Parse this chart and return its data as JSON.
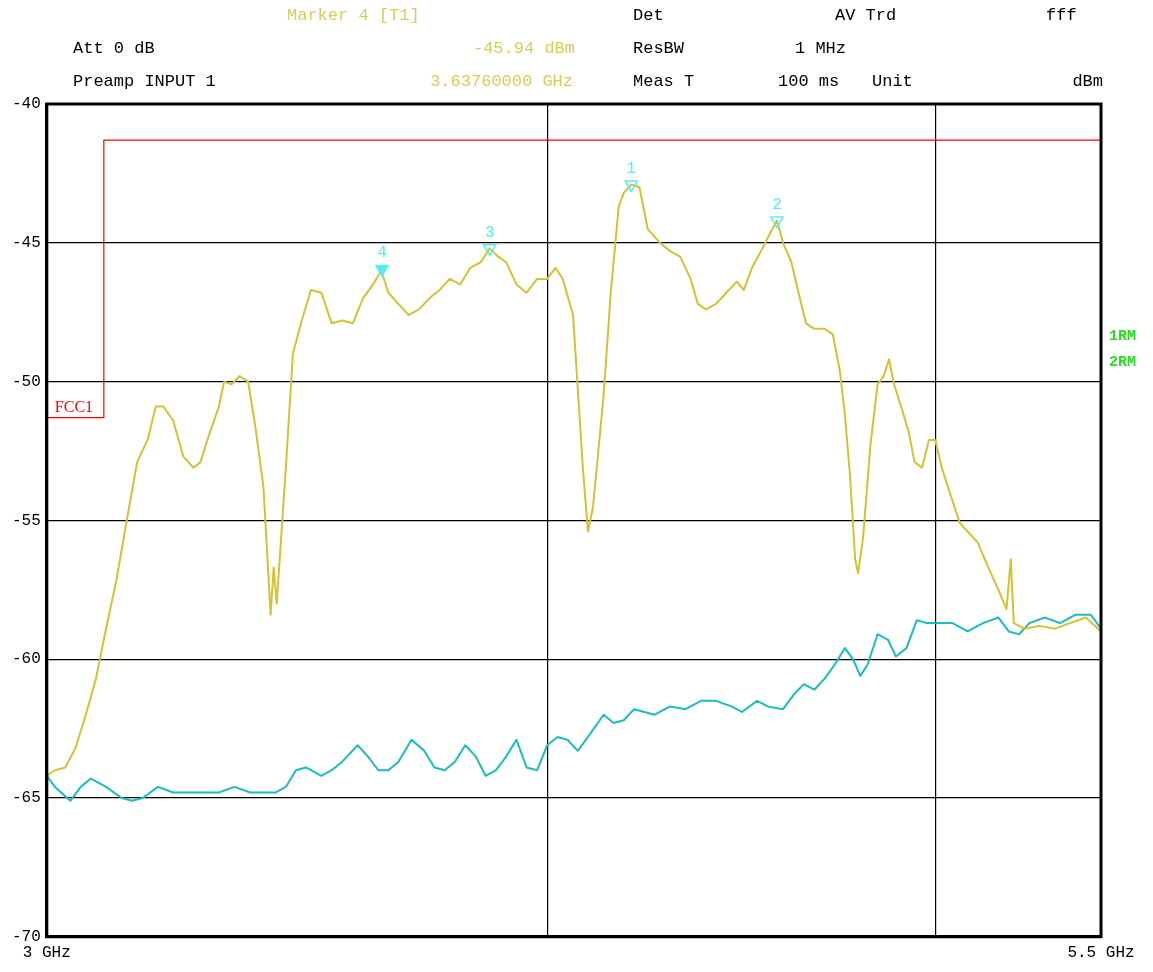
{
  "chart_data": {
    "type": "line",
    "xlim": [
      3,
      5.5
    ],
    "ylim": [
      -70,
      -40
    ],
    "log": "x",
    "grid": true,
    "legend": false,
    "marker": "none",
    "line_style": "solid",
    "xticks": [
      {
        "value": 3,
        "label": "3 GHz"
      },
      {
        "value": 4,
        "label": null
      },
      {
        "value": 5,
        "label": null
      },
      {
        "value": 5.5,
        "label": "5.5 GHz"
      }
    ],
    "yticks": [
      -40,
      -45,
      -50,
      -55,
      -60,
      -65,
      -70
    ],
    "annotations": [
      "Marker 4 [T1]",
      "Det",
      "AV Trd",
      "fff",
      "Att 0 dB",
      "-45.94 dBm",
      "ResBW",
      "1 MHz",
      "Preamp INPUT 1",
      "3.63760000 GHz",
      "Meas T",
      "100 ms",
      "Unit",
      "dBm",
      "1RM",
      "2RM"
    ],
    "series": [
      {
        "type": "scatter",
        "marker": "triangle",
        "name": "1",
        "color": "#55eeee",
        "x": [
          4.198
        ],
        "values": [
          -42.9
        ]
      },
      {
        "type": "scatter",
        "marker": "triangle",
        "name": "2",
        "color": "#55eeee",
        "x": [
          4.565
        ],
        "values": [
          -44.2
        ]
      },
      {
        "type": "scatter",
        "marker": "triangle",
        "name": "3",
        "color": "#55eeee",
        "x": [
          3.87
        ],
        "values": [
          -45.2
        ]
      },
      {
        "type": "scatter",
        "marker": "triangle",
        "name": "4",
        "color": "#55eeee",
        "x": [
          3.6376
        ],
        "values": [
          -45.94
        ]
      },
      {
        "color": "#d4c232",
        "x": [
          3.0,
          3.014,
          3.032,
          3.05,
          3.068,
          3.086,
          3.104,
          3.123,
          3.142,
          3.16,
          3.179,
          3.194,
          3.208,
          3.226,
          3.245,
          3.264,
          3.277,
          3.292,
          3.312,
          3.322,
          3.336,
          3.352,
          3.368,
          3.382,
          3.398,
          3.412,
          3.418,
          3.424,
          3.442,
          3.456,
          3.472,
          3.492,
          3.513,
          3.534,
          3.555,
          3.577,
          3.598,
          3.619,
          3.636,
          3.651,
          3.672,
          3.694,
          3.716,
          3.738,
          3.76,
          3.782,
          3.805,
          3.827,
          3.85,
          3.87,
          3.889,
          3.907,
          3.93,
          3.953,
          3.977,
          4.0,
          4.019,
          4.036,
          4.06,
          4.083,
          4.095,
          4.107,
          4.132,
          4.149,
          4.168,
          4.18,
          4.198,
          4.218,
          4.238,
          4.268,
          4.293,
          4.318,
          4.344,
          4.362,
          4.382,
          4.408,
          4.434,
          4.461,
          4.479,
          4.5,
          4.527,
          4.549,
          4.565,
          4.581,
          4.603,
          4.622,
          4.642,
          4.664,
          4.692,
          4.714,
          4.733,
          4.747,
          4.761,
          4.775,
          4.783,
          4.797,
          4.817,
          4.837,
          4.854,
          4.869,
          4.883,
          4.903,
          4.924,
          4.941,
          4.962,
          4.982,
          5.0,
          5.021,
          5.05,
          5.071,
          5.094,
          5.124,
          5.155,
          5.185,
          5.209,
          5.222,
          5.231,
          5.263,
          5.309,
          5.356,
          5.403,
          5.452,
          5.5
        ],
        "values": [
          -64.2,
          -64.0,
          -63.9,
          -63.2,
          -62.0,
          -60.7,
          -58.9,
          -57.1,
          -54.9,
          -52.9,
          -52.1,
          -50.9,
          -50.9,
          -51.4,
          -52.7,
          -53.1,
          -52.9,
          -52.0,
          -50.9,
          -50.0,
          -50.1,
          -49.8,
          -50.0,
          -51.6,
          -53.8,
          -58.4,
          -56.7,
          -58.0,
          -53.1,
          -49.0,
          -47.9,
          -46.7,
          -46.8,
          -47.9,
          -47.8,
          -47.9,
          -47.0,
          -46.5,
          -46.0,
          -46.8,
          -47.2,
          -47.6,
          -47.4,
          -47.0,
          -46.7,
          -46.3,
          -46.5,
          -45.9,
          -45.7,
          -45.2,
          -45.5,
          -45.7,
          -46.5,
          -46.8,
          -46.3,
          -46.3,
          -45.9,
          -46.3,
          -47.6,
          -53.1,
          -55.4,
          -54.5,
          -50.5,
          -46.8,
          -43.7,
          -43.2,
          -42.9,
          -43.0,
          -44.5,
          -45.0,
          -45.3,
          -45.5,
          -46.3,
          -47.2,
          -47.4,
          -47.2,
          -46.8,
          -46.4,
          -46.7,
          -45.9,
          -45.2,
          -44.6,
          -44.2,
          -45.0,
          -45.7,
          -46.8,
          -47.9,
          -48.1,
          -48.1,
          -48.3,
          -49.6,
          -51.2,
          -53.4,
          -56.4,
          -56.9,
          -55.6,
          -52.3,
          -50.1,
          -49.8,
          -49.2,
          -50.1,
          -50.9,
          -51.8,
          -52.9,
          -53.1,
          -52.1,
          -52.1,
          -53.2,
          -54.3,
          -55.1,
          -55.4,
          -55.8,
          -56.7,
          -57.5,
          -58.2,
          -56.4,
          -58.7,
          -58.9,
          -58.8,
          -58.9,
          -58.7,
          -58.5,
          -59.0
        ]
      },
      {
        "color": "#1bbdbd",
        "x": [
          3.0,
          3.014,
          3.041,
          3.059,
          3.077,
          3.104,
          3.132,
          3.151,
          3.17,
          3.198,
          3.226,
          3.255,
          3.283,
          3.312,
          3.342,
          3.372,
          3.402,
          3.422,
          3.442,
          3.462,
          3.482,
          3.513,
          3.534,
          3.555,
          3.587,
          3.608,
          3.63,
          3.651,
          3.672,
          3.7,
          3.727,
          3.749,
          3.771,
          3.793,
          3.816,
          3.839,
          3.861,
          3.884,
          3.907,
          3.93,
          3.953,
          3.977,
          4.0,
          4.024,
          4.047,
          4.071,
          4.095,
          4.132,
          4.156,
          4.18,
          4.205,
          4.23,
          4.255,
          4.293,
          4.331,
          4.37,
          4.408,
          4.447,
          4.474,
          4.513,
          4.541,
          4.581,
          4.608,
          4.636,
          4.664,
          4.692,
          4.719,
          4.747,
          4.769,
          4.789,
          4.809,
          4.837,
          4.866,
          4.888,
          4.918,
          4.947,
          4.976,
          5.006,
          5.05,
          5.094,
          5.139,
          5.185,
          5.216,
          5.247,
          5.278,
          5.325,
          5.372,
          5.419,
          5.468,
          5.5
        ],
        "values": [
          -64.2,
          -64.6,
          -65.1,
          -64.6,
          -64.3,
          -64.6,
          -65.0,
          -65.1,
          -65.0,
          -64.6,
          -64.8,
          -64.8,
          -64.8,
          -64.8,
          -64.6,
          -64.8,
          -64.8,
          -64.8,
          -64.6,
          -64.0,
          -63.9,
          -64.2,
          -64.0,
          -63.7,
          -63.1,
          -63.5,
          -64.0,
          -64.0,
          -63.7,
          -62.9,
          -63.3,
          -63.9,
          -64.0,
          -63.7,
          -63.1,
          -63.5,
          -64.2,
          -64.0,
          -63.5,
          -62.9,
          -63.9,
          -64.0,
          -63.1,
          -62.8,
          -62.9,
          -63.3,
          -62.8,
          -62.0,
          -62.3,
          -62.2,
          -61.8,
          -61.9,
          -62.0,
          -61.7,
          -61.8,
          -61.5,
          -61.5,
          -61.7,
          -61.9,
          -61.5,
          -61.7,
          -61.8,
          -61.3,
          -60.9,
          -61.1,
          -60.7,
          -60.2,
          -59.6,
          -60.0,
          -60.6,
          -60.2,
          -59.1,
          -59.3,
          -59.9,
          -59.6,
          -58.6,
          -58.7,
          -58.7,
          -58.7,
          -59.0,
          -58.7,
          -58.5,
          -59.0,
          -59.1,
          -58.7,
          -58.5,
          -58.7,
          -58.4,
          -58.4,
          -58.9
        ]
      },
      {
        "name": "FCC1",
        "color": "#ff0000",
        "x": [
          3,
          3.1,
          3.1,
          5.5
        ],
        "values": [
          -51.3,
          -51.3,
          -41.3,
          -41.3
        ]
      }
    ]
  }
}
